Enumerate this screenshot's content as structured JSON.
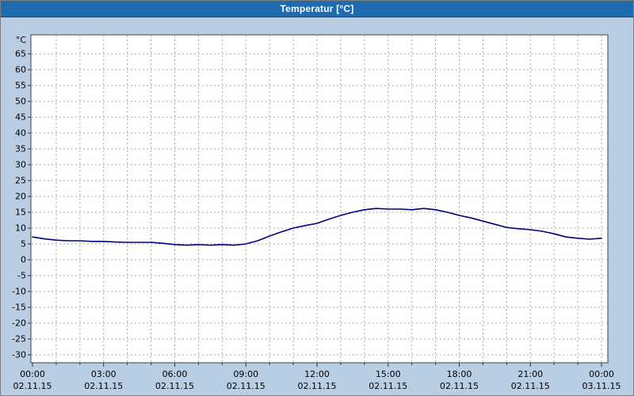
{
  "window": {
    "title": "Temperatur [°C]"
  },
  "colors": {
    "titlebar_bg": "#1e6bb0",
    "titlebar_text": "#ffffff",
    "window_bg": "#b9cde3",
    "plot_bg": "#ffffff",
    "grid": "#a6a6a6",
    "plot_border": "#404040",
    "axis": "#303030",
    "line": "#000080",
    "text": "#000000"
  },
  "chart_data": {
    "type": "line",
    "title": "Temperatur [°C]",
    "series_name": "Temperatur",
    "ylabel_unit": "°C",
    "ylim": [
      -32.5,
      71
    ],
    "xlim_hours": [
      0,
      24
    ],
    "grid": "dashed; vertical every 1 h, horizontal every 5 °C",
    "legend": "none",
    "start_hour": 0,
    "step_hours": 0.5,
    "values": [
      7.2,
      6.6,
      6.2,
      6.0,
      6.0,
      5.8,
      5.8,
      5.6,
      5.5,
      5.5,
      5.5,
      5.2,
      4.8,
      4.6,
      4.8,
      4.6,
      4.8,
      4.6,
      5.0,
      6.0,
      7.5,
      8.8,
      10.0,
      10.8,
      11.5,
      12.8,
      14.0,
      15.0,
      15.8,
      16.2,
      16.0,
      16.0,
      15.8,
      16.2,
      15.8,
      15.0,
      14.0,
      13.2,
      12.2,
      11.2,
      10.2,
      9.8,
      9.5,
      9.0,
      8.2,
      7.2,
      6.8,
      6.5,
      6.8
    ],
    "y_ticks": [
      65,
      60,
      55,
      50,
      45,
      40,
      35,
      30,
      25,
      20,
      15,
      10,
      5,
      0,
      -5,
      -10,
      -15,
      -20,
      -25,
      -30
    ],
    "x_ticks": [
      {
        "hour": 0,
        "time": "00:00",
        "date": "02.11.15"
      },
      {
        "hour": 3,
        "time": "03:00",
        "date": "02.11.15"
      },
      {
        "hour": 6,
        "time": "06:00",
        "date": "02.11.15"
      },
      {
        "hour": 9,
        "time": "09:00",
        "date": "02.11.15"
      },
      {
        "hour": 12,
        "time": "12:00",
        "date": "02.11.15"
      },
      {
        "hour": 15,
        "time": "15:00",
        "date": "02.11.15"
      },
      {
        "hour": 18,
        "time": "18:00",
        "date": "02.11.15"
      },
      {
        "hour": 21,
        "time": "21:00",
        "date": "02.11.15"
      },
      {
        "hour": 24,
        "time": "00:00",
        "date": "03.11.15"
      }
    ]
  }
}
